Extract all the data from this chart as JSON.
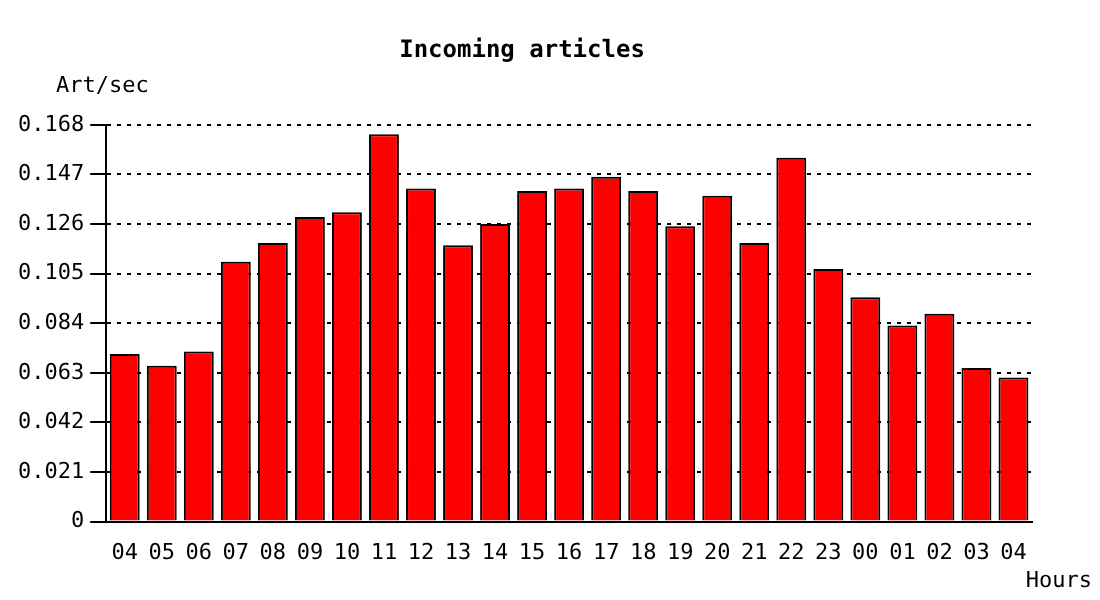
{
  "chart_data": {
    "type": "bar",
    "title": "Incoming articles",
    "xlabel": "Hours",
    "ylabel": "Art/sec",
    "categories": [
      "04",
      "05",
      "06",
      "07",
      "08",
      "09",
      "10",
      "11",
      "12",
      "13",
      "14",
      "15",
      "16",
      "17",
      "18",
      "19",
      "20",
      "21",
      "22",
      "23",
      "00",
      "01",
      "02",
      "03",
      "04"
    ],
    "values": [
      0.071,
      0.066,
      0.072,
      0.11,
      0.118,
      0.129,
      0.131,
      0.164,
      0.141,
      0.117,
      0.126,
      0.14,
      0.141,
      0.146,
      0.14,
      0.125,
      0.138,
      0.118,
      0.154,
      0.107,
      0.095,
      0.083,
      0.088,
      0.065,
      0.061
    ],
    "color": "#ff0000",
    "ylim": [
      0,
      0.168
    ],
    "yticks": [
      0,
      0.021,
      0.042,
      0.063,
      0.084,
      0.105,
      0.126,
      0.147,
      0.168
    ],
    "grid": "y"
  }
}
